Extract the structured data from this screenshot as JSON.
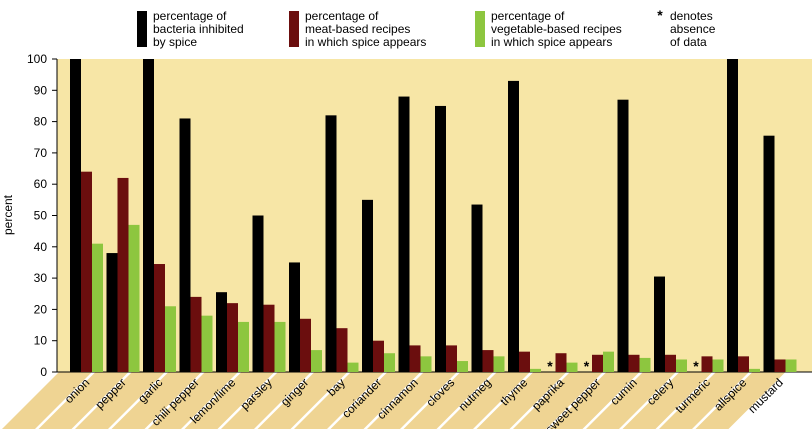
{
  "chart_data": {
    "type": "bar",
    "ylabel": "percent",
    "ylim": [
      0,
      100
    ],
    "yticks": [
      0,
      10,
      20,
      30,
      40,
      50,
      60,
      70,
      80,
      90,
      100
    ],
    "grid": false,
    "legend_position": "top",
    "categories": [
      "onion",
      "pepper",
      "garlic",
      "chili pepper",
      "lemon/lime",
      "parsley",
      "ginger",
      "bay",
      "coriander",
      "cinnamon",
      "cloves",
      "nutmeg",
      "thyme",
      "paprika",
      "sweet pepper",
      "cumin",
      "celery",
      "turmeric",
      "allspice",
      "mustard"
    ],
    "series": [
      {
        "name": "percentage of bacteria inhibited by spice",
        "name_lines": [
          "percentage of",
          "bacteria inhibited",
          "by spice"
        ],
        "color": "#000000",
        "values": [
          100,
          38,
          100,
          81,
          25.5,
          50,
          35,
          82,
          55,
          88,
          85,
          53.5,
          93,
          null,
          null,
          87,
          30.5,
          null,
          100,
          75.5
        ]
      },
      {
        "name": "percentage of meat-based recipes in which spice appears",
        "name_lines": [
          "percentage of",
          "meat-based recipes",
          "in which spice appears"
        ],
        "color": "#6b0e0e",
        "values": [
          64,
          62,
          34.5,
          24,
          22,
          21.5,
          17,
          14,
          10,
          8.5,
          8.5,
          7,
          6.5,
          6,
          5.5,
          5.5,
          5.5,
          5,
          5,
          4
        ]
      },
      {
        "name": "percentage of vegetable-based recipes in which spice appears",
        "name_lines": [
          "percentage of",
          "vegetable-based recipes",
          "in which spice appears"
        ],
        "color": "#8dc63f",
        "values": [
          41,
          47,
          21,
          18,
          16,
          16,
          7,
          3,
          6,
          5,
          3.5,
          5,
          1,
          3,
          6.5,
          4.5,
          4,
          4,
          1,
          4
        ]
      }
    ],
    "note_symbol": "*",
    "note_lines": [
      "denotes",
      "absence",
      "of data"
    ],
    "colors": {
      "plot_background": "#f7e6a6",
      "label_band": "#efd493",
      "axis": "#000000"
    }
  }
}
